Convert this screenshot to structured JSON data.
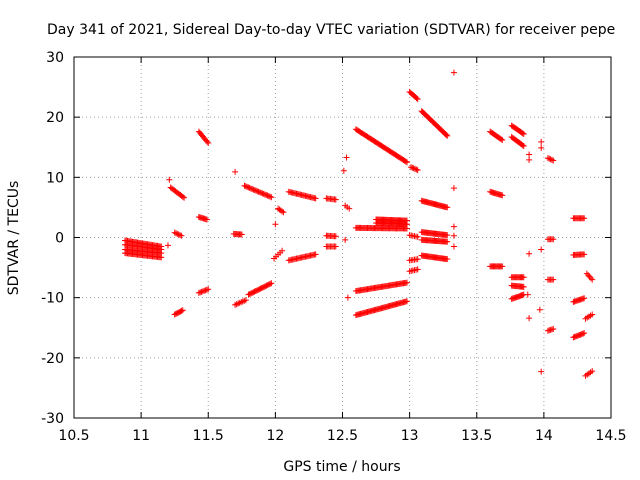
{
  "chart_data": {
    "type": "scatter",
    "title": "Day 341 of 2021, Sidereal Day-to-day VTEC variation (SDTVAR) for receiver pepe",
    "xlabel": "GPS time / hours",
    "ylabel": "SDTVAR / TECUs",
    "xlim": [
      10.5,
      14.5
    ],
    "ylim": [
      -30,
      30
    ],
    "xticks": [
      "10.5",
      "11",
      "11.5",
      "12",
      "12.5",
      "13",
      "13.5",
      "14",
      "14.5"
    ],
    "yticks": [
      "30",
      "20",
      "10",
      "0",
      "-10",
      "-20",
      "-30"
    ],
    "grid": true,
    "marker": "+",
    "color": "#ff0000",
    "segments": [
      {
        "x0": 10.88,
        "x1": 11.15,
        "y0": -0.5,
        "y1": -1.5,
        "n": 30
      },
      {
        "x0": 10.88,
        "x1": 11.15,
        "y0": -1.2,
        "y1": -2.0,
        "n": 30
      },
      {
        "x0": 10.88,
        "x1": 11.15,
        "y0": -2.0,
        "y1": -2.6,
        "n": 30
      },
      {
        "x0": 10.88,
        "x1": 11.15,
        "y0": -2.6,
        "y1": -3.3,
        "n": 30
      },
      {
        "x0": 11.21,
        "x1": 11.21,
        "y0": 9.6,
        "y1": 9.6,
        "n": 1
      },
      {
        "x0": 11.22,
        "x1": 11.32,
        "y0": 8.3,
        "y1": 6.6,
        "n": 12
      },
      {
        "x0": 11.25,
        "x1": 11.3,
        "y0": 0.8,
        "y1": 0.3,
        "n": 6
      },
      {
        "x0": 11.2,
        "x1": 11.2,
        "y0": -1.3,
        "y1": -1.3,
        "n": 1
      },
      {
        "x0": 11.25,
        "x1": 11.31,
        "y0": -12.8,
        "y1": -12.1,
        "n": 8
      },
      {
        "x0": 11.43,
        "x1": 11.5,
        "y0": 17.6,
        "y1": 15.7,
        "n": 10
      },
      {
        "x0": 11.43,
        "x1": 11.49,
        "y0": 3.4,
        "y1": 3.0,
        "n": 8
      },
      {
        "x0": 11.43,
        "x1": 11.5,
        "y0": -9.2,
        "y1": -8.6,
        "n": 8
      },
      {
        "x0": 11.7,
        "x1": 11.7,
        "y0": 10.9,
        "y1": 10.9,
        "n": 1
      },
      {
        "x0": 11.69,
        "x1": 11.75,
        "y0": 0.6,
        "y1": 0.5,
        "n": 8
      },
      {
        "x0": 11.7,
        "x1": 11.78,
        "y0": -11.2,
        "y1": -10.4,
        "n": 8
      },
      {
        "x0": 11.77,
        "x1": 11.97,
        "y0": 8.6,
        "y1": 6.7,
        "n": 22
      },
      {
        "x0": 11.8,
        "x1": 11.97,
        "y0": -9.5,
        "y1": -7.6,
        "n": 20
      },
      {
        "x0": 12.0,
        "x1": 12.0,
        "y0": 2.2,
        "y1": 2.2,
        "n": 1
      },
      {
        "x0": 12.02,
        "x1": 12.06,
        "y0": 4.8,
        "y1": 4.2,
        "n": 5
      },
      {
        "x0": 11.99,
        "x1": 12.05,
        "y0": -3.5,
        "y1": -2.2,
        "n": 5
      },
      {
        "x0": 12.1,
        "x1": 12.3,
        "y0": 7.6,
        "y1": 6.5,
        "n": 22
      },
      {
        "x0": 12.1,
        "x1": 12.3,
        "y0": -3.8,
        "y1": -2.8,
        "n": 22
      },
      {
        "x0": 12.38,
        "x1": 12.45,
        "y0": 6.5,
        "y1": 6.3,
        "n": 8
      },
      {
        "x0": 12.38,
        "x1": 12.45,
        "y0": 0.3,
        "y1": 0.2,
        "n": 8
      },
      {
        "x0": 12.38,
        "x1": 12.45,
        "y0": -1.5,
        "y1": -1.5,
        "n": 8
      },
      {
        "x0": 12.53,
        "x1": 12.53,
        "y0": 13.3,
        "y1": 13.3,
        "n": 1
      },
      {
        "x0": 12.51,
        "x1": 12.51,
        "y0": 11.1,
        "y1": 11.1,
        "n": 1
      },
      {
        "x0": 12.52,
        "x1": 12.55,
        "y0": 5.3,
        "y1": 4.8,
        "n": 3
      },
      {
        "x0": 12.52,
        "x1": 12.52,
        "y0": -0.4,
        "y1": -0.4,
        "n": 1
      },
      {
        "x0": 12.54,
        "x1": 12.54,
        "y0": -10.0,
        "y1": -10.0,
        "n": 1
      },
      {
        "x0": 12.6,
        "x1": 12.98,
        "y0": 18.0,
        "y1": 12.5,
        "n": 45
      },
      {
        "x0": 12.6,
        "x1": 12.98,
        "y0": 1.6,
        "y1": 1.5,
        "n": 45
      },
      {
        "x0": 12.6,
        "x1": 12.98,
        "y0": -8.9,
        "y1": -7.5,
        "n": 45
      },
      {
        "x0": 12.6,
        "x1": 12.98,
        "y0": -12.9,
        "y1": -10.6,
        "n": 45
      },
      {
        "x0": 12.75,
        "x1": 12.98,
        "y0": 3.0,
        "y1": 2.8,
        "n": 30
      },
      {
        "x0": 12.75,
        "x1": 12.98,
        "y0": 2.4,
        "y1": 2.2,
        "n": 30
      },
      {
        "x0": 13.0,
        "x1": 13.06,
        "y0": 24.2,
        "y1": 23.0,
        "n": 8
      },
      {
        "x0": 13.01,
        "x1": 13.06,
        "y0": 11.7,
        "y1": 11.2,
        "n": 6
      },
      {
        "x0": 13.0,
        "x1": 13.06,
        "y0": 0.4,
        "y1": 0.1,
        "n": 6
      },
      {
        "x0": 13.0,
        "x1": 13.06,
        "y0": -3.8,
        "y1": -3.6,
        "n": 6
      },
      {
        "x0": 13.0,
        "x1": 13.06,
        "y0": -5.6,
        "y1": -5.3,
        "n": 6
      },
      {
        "x0": 13.09,
        "x1": 13.28,
        "y0": 21.0,
        "y1": 16.9,
        "n": 30
      },
      {
        "x0": 13.09,
        "x1": 13.28,
        "y0": 6.1,
        "y1": 5.0,
        "n": 25
      },
      {
        "x0": 13.09,
        "x1": 13.28,
        "y0": 0.9,
        "y1": 0.4,
        "n": 25
      },
      {
        "x0": 13.09,
        "x1": 13.28,
        "y0": -0.4,
        "y1": -0.7,
        "n": 25
      },
      {
        "x0": 13.09,
        "x1": 13.28,
        "y0": -3.0,
        "y1": -3.6,
        "n": 25
      },
      {
        "x0": 13.33,
        "x1": 13.33,
        "y0": 27.4,
        "y1": 27.4,
        "n": 1
      },
      {
        "x0": 13.33,
        "x1": 13.33,
        "y0": 8.2,
        "y1": 8.2,
        "n": 1
      },
      {
        "x0": 13.33,
        "x1": 13.33,
        "y0": 1.8,
        "y1": 1.8,
        "n": 1
      },
      {
        "x0": 13.33,
        "x1": 13.33,
        "y0": 0.3,
        "y1": 0.3,
        "n": 1
      },
      {
        "x0": 13.33,
        "x1": 13.33,
        "y0": -1.5,
        "y1": -1.5,
        "n": 1
      },
      {
        "x0": 13.6,
        "x1": 13.69,
        "y0": 17.6,
        "y1": 16.2,
        "n": 12
      },
      {
        "x0": 13.6,
        "x1": 13.69,
        "y0": 7.6,
        "y1": 7.0,
        "n": 12
      },
      {
        "x0": 13.6,
        "x1": 13.69,
        "y0": -4.8,
        "y1": -4.8,
        "n": 12
      },
      {
        "x0": 13.76,
        "x1": 13.85,
        "y0": 18.6,
        "y1": 17.2,
        "n": 12
      },
      {
        "x0": 13.76,
        "x1": 13.85,
        "y0": 16.7,
        "y1": 15.2,
        "n": 12
      },
      {
        "x0": 13.76,
        "x1": 13.85,
        "y0": -6.6,
        "y1": -6.6,
        "n": 12
      },
      {
        "x0": 13.76,
        "x1": 13.85,
        "y0": -8.0,
        "y1": -8.2,
        "n": 12
      },
      {
        "x0": 13.76,
        "x1": 13.85,
        "y0": -10.2,
        "y1": -9.5,
        "n": 12
      },
      {
        "x0": 13.89,
        "x1": 13.89,
        "y0": 13.8,
        "y1": 12.9,
        "n": 2
      },
      {
        "x0": 13.89,
        "x1": 13.89,
        "y0": -2.7,
        "y1": -2.7,
        "n": 1
      },
      {
        "x0": 13.88,
        "x1": 13.88,
        "y0": -9.5,
        "y1": -9.5,
        "n": 1
      },
      {
        "x0": 13.89,
        "x1": 13.89,
        "y0": -13.4,
        "y1": -13.4,
        "n": 1
      },
      {
        "x0": 13.98,
        "x1": 13.98,
        "y0": 15.9,
        "y1": 14.9,
        "n": 2
      },
      {
        "x0": 13.98,
        "x1": 13.98,
        "y0": -2.0,
        "y1": -2.0,
        "n": 1
      },
      {
        "x0": 13.97,
        "x1": 13.97,
        "y0": -12.0,
        "y1": -12.0,
        "n": 1
      },
      {
        "x0": 13.98,
        "x1": 13.98,
        "y0": -22.3,
        "y1": -22.3,
        "n": 1
      },
      {
        "x0": 14.03,
        "x1": 14.07,
        "y0": 13.2,
        "y1": 12.8,
        "n": 5
      },
      {
        "x0": 14.03,
        "x1": 14.07,
        "y0": -0.3,
        "y1": -0.3,
        "n": 5
      },
      {
        "x0": 14.03,
        "x1": 14.07,
        "y0": -7.0,
        "y1": -7.0,
        "n": 5
      },
      {
        "x0": 14.03,
        "x1": 14.07,
        "y0": -15.5,
        "y1": -15.2,
        "n": 5
      },
      {
        "x0": 14.22,
        "x1": 14.3,
        "y0": 3.2,
        "y1": 3.2,
        "n": 10
      },
      {
        "x0": 14.22,
        "x1": 14.3,
        "y0": -2.9,
        "y1": -2.8,
        "n": 10
      },
      {
        "x0": 14.22,
        "x1": 14.3,
        "y0": -10.7,
        "y1": -10.1,
        "n": 10
      },
      {
        "x0": 14.22,
        "x1": 14.3,
        "y0": -16.6,
        "y1": -15.9,
        "n": 10
      },
      {
        "x0": 14.32,
        "x1": 14.36,
        "y0": -6.0,
        "y1": -7.0,
        "n": 5
      },
      {
        "x0": 14.31,
        "x1": 14.36,
        "y0": -13.5,
        "y1": -12.8,
        "n": 5
      },
      {
        "x0": 14.31,
        "x1": 14.36,
        "y0": -23.0,
        "y1": -22.2,
        "n": 5
      }
    ]
  }
}
